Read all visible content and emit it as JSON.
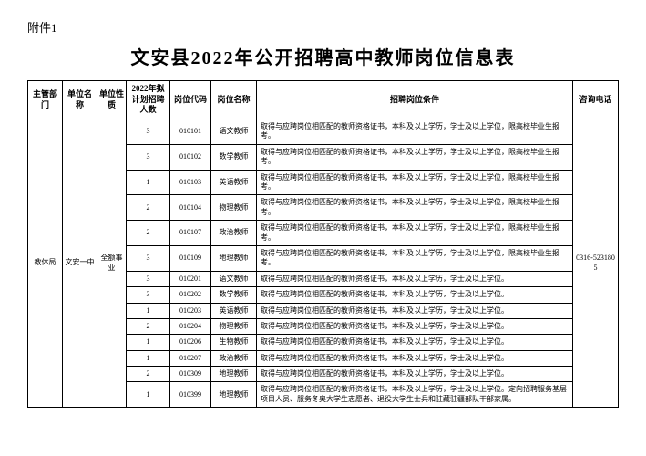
{
  "attachment_label": "附件1",
  "title": "文安县2022年公开招聘高中教师岗位信息表",
  "headers": {
    "dept": "主管部门",
    "unit": "单位名称",
    "nature": "单位性质",
    "count": "2022年拟计划招聘人数",
    "code": "岗位代码",
    "name": "岗位名称",
    "req": "招聘岗位条件",
    "phone": "咨询电话"
  },
  "merged": {
    "dept": "教体局",
    "unit": "文安一中",
    "nature": "全额事业",
    "phone": "0316-5231805"
  },
  "rows": [
    {
      "count": "3",
      "code": "010101",
      "name": "语文教师",
      "req": "取得与应聘岗位相匹配的教师资格证书，本科及以上学历，学士及以上学位，限高校毕业生报考。"
    },
    {
      "count": "3",
      "code": "010102",
      "name": "数学教师",
      "req": "取得与应聘岗位相匹配的教师资格证书，本科及以上学历，学士及以上学位，限高校毕业生报考。"
    },
    {
      "count": "1",
      "code": "010103",
      "name": "英语教师",
      "req": "取得与应聘岗位相匹配的教师资格证书，本科及以上学历，学士及以上学位，限高校毕业生报考。"
    },
    {
      "count": "2",
      "code": "010104",
      "name": "物理教师",
      "req": "取得与应聘岗位相匹配的教师资格证书，本科及以上学历，学士及以上学位，限高校毕业生报考。"
    },
    {
      "count": "2",
      "code": "010107",
      "name": "政治教师",
      "req": "取得与应聘岗位相匹配的教师资格证书，本科及以上学历，学士及以上学位，限高校毕业生报考。"
    },
    {
      "count": "3",
      "code": "010109",
      "name": "地理教师",
      "req": "取得与应聘岗位相匹配的教师资格证书，本科及以上学历，学士及以上学位，限高校毕业生报考。"
    },
    {
      "count": "3",
      "code": "010201",
      "name": "语文教师",
      "req": "取得与应聘岗位相匹配的教师资格证书，本科及以上学历，学士及以上学位。"
    },
    {
      "count": "3",
      "code": "010202",
      "name": "数学教师",
      "req": "取得与应聘岗位相匹配的教师资格证书，本科及以上学历，学士及以上学位。"
    },
    {
      "count": "1",
      "code": "010203",
      "name": "英语教师",
      "req": "取得与应聘岗位相匹配的教师资格证书，本科及以上学历，学士及以上学位。"
    },
    {
      "count": "2",
      "code": "010204",
      "name": "物理教师",
      "req": "取得与应聘岗位相匹配的教师资格证书，本科及以上学历，学士及以上学位。"
    },
    {
      "count": "1",
      "code": "010206",
      "name": "生物教师",
      "req": "取得与应聘岗位相匹配的教师资格证书，本科及以上学历，学士及以上学位。"
    },
    {
      "count": "1",
      "code": "010207",
      "name": "政治教师",
      "req": "取得与应聘岗位相匹配的教师资格证书，本科及以上学历，学士及以上学位。"
    },
    {
      "count": "2",
      "code": "010309",
      "name": "地理教师",
      "req": "取得与应聘岗位相匹配的教师资格证书，本科及以上学历，学士及以上学位。"
    },
    {
      "count": "1",
      "code": "010399",
      "name": "地理教师",
      "req": "取得与应聘岗位相匹配的教师资格证书，本科及以上学历，学士及以上学位。定向招聘服务基层项目人员、服务冬奥大学生志愿者、退役大学生士兵和驻藏驻疆部队干部家属。"
    }
  ]
}
